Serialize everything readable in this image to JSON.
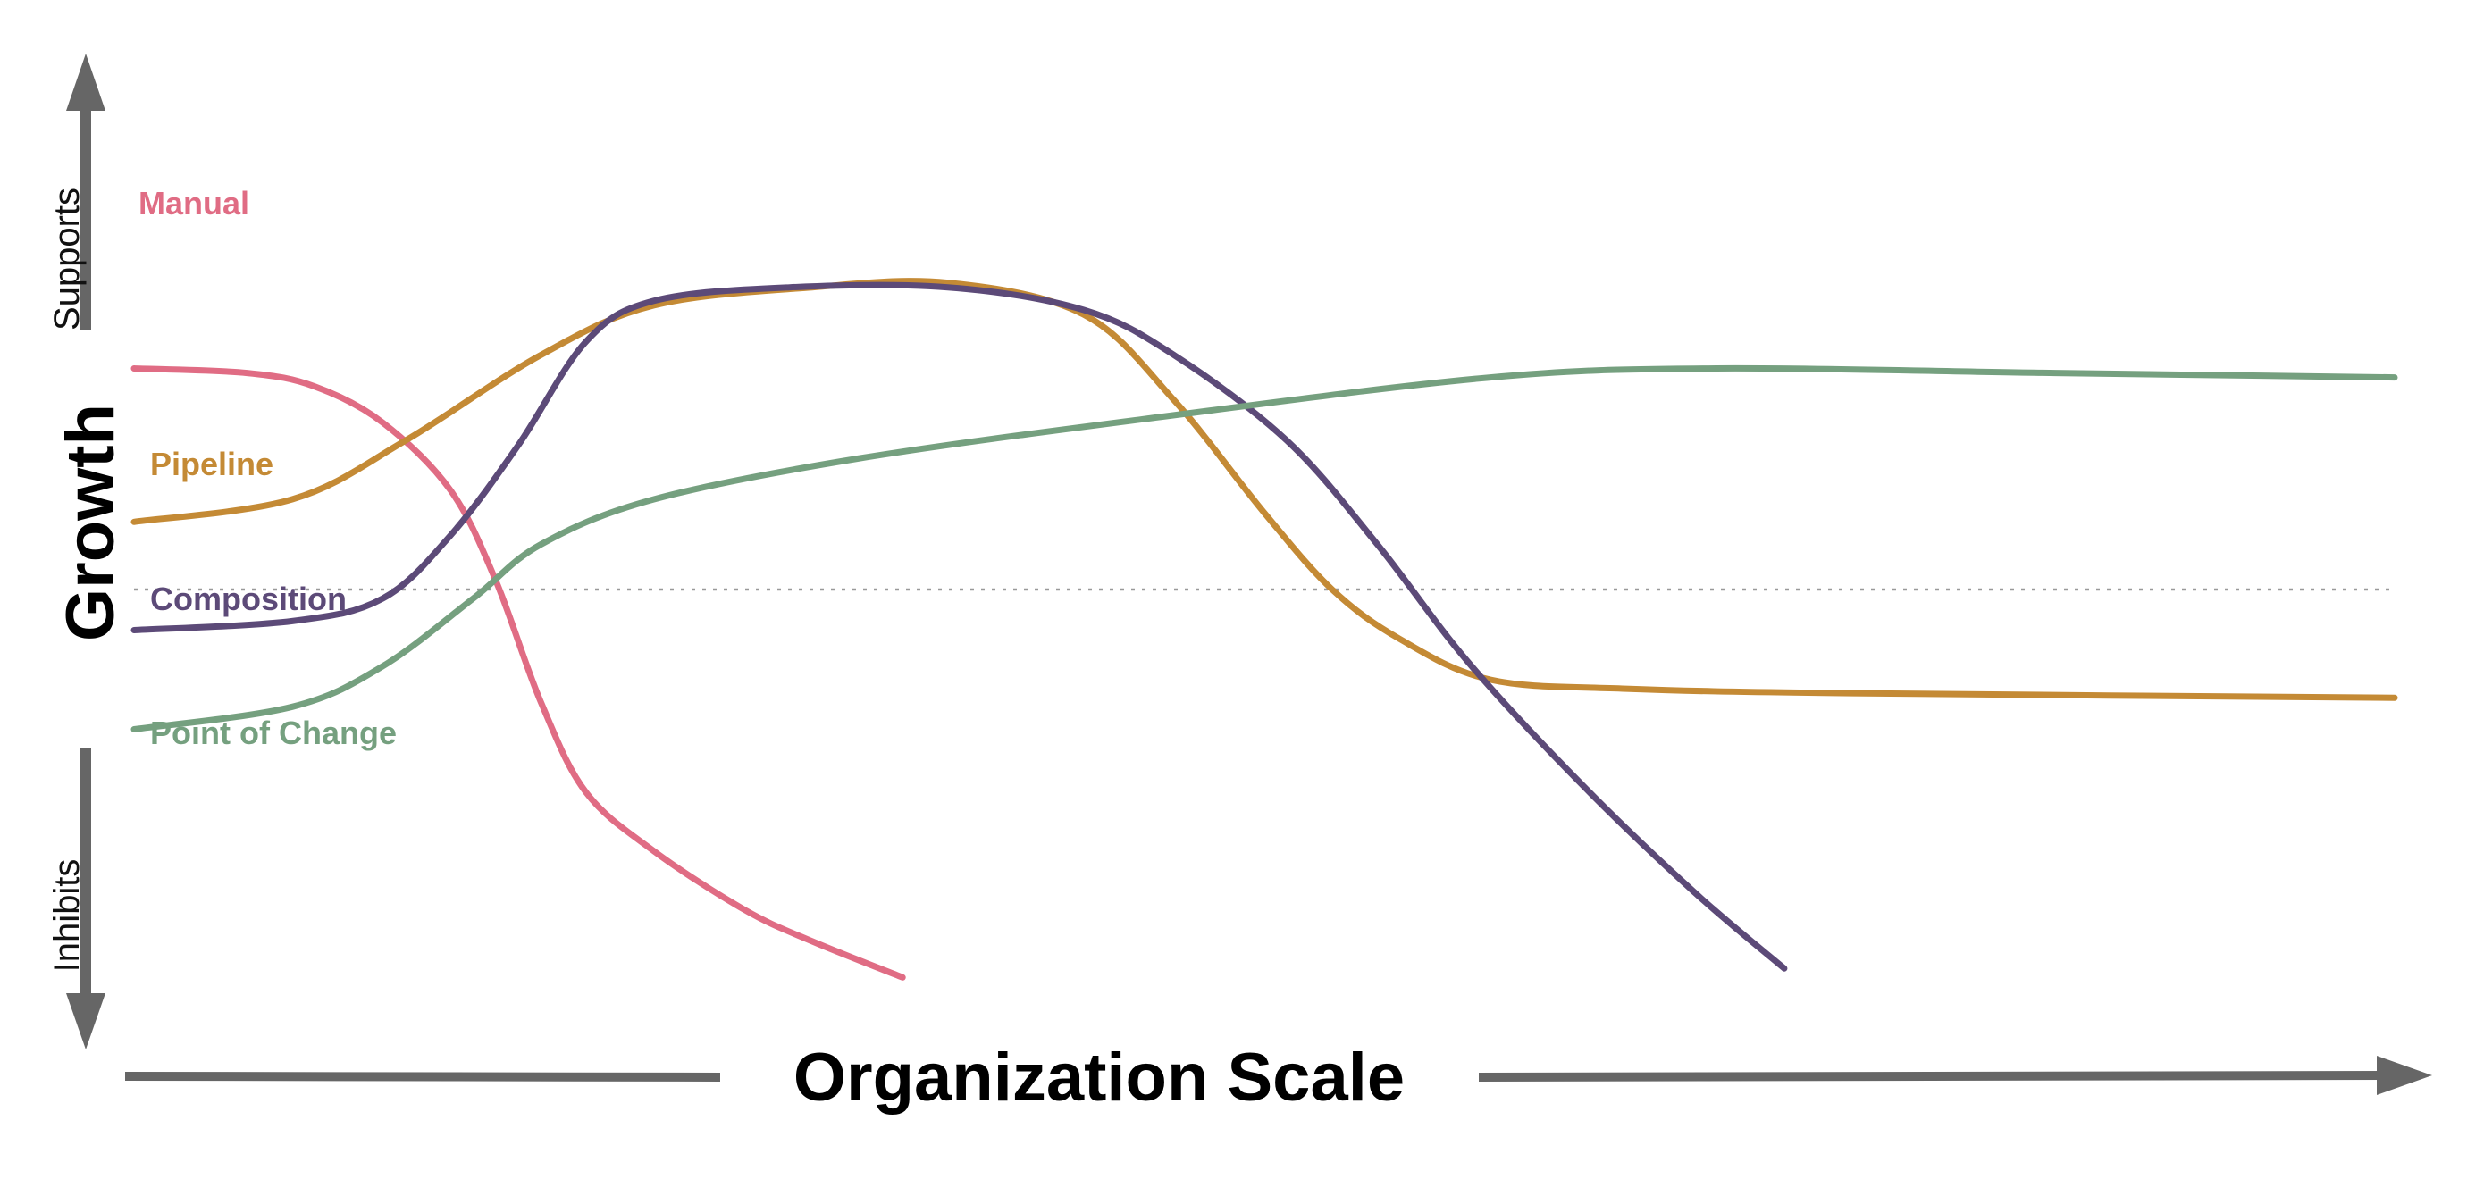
{
  "chart_data": {
    "type": "line",
    "title": "",
    "xlabel": "Organization Scale",
    "ylabel": "Growth",
    "y_top_label": "Supports",
    "y_bottom_label": "Inhibits",
    "axis_color": "#666666",
    "reference_line_color": "#999999",
    "xlim": [
      0,
      100
    ],
    "ylim": [
      -1,
      1
    ],
    "reference_line_y": 0,
    "series": [
      {
        "name": "Manual",
        "color": "#E06C84",
        "points": [
          [
            0,
            0.49
          ],
          [
            5,
            0.48
          ],
          [
            8,
            0.45
          ],
          [
            11,
            0.37
          ],
          [
            14,
            0.22
          ],
          [
            16,
            0.02
          ],
          [
            18,
            -0.25
          ],
          [
            20,
            -0.45
          ],
          [
            23,
            -0.58
          ],
          [
            27,
            -0.71
          ],
          [
            30,
            -0.78
          ],
          [
            34,
            -0.86
          ]
        ]
      },
      {
        "name": "Pipeline",
        "color": "#C48A35",
        "points": [
          [
            0,
            0.15
          ],
          [
            7,
            0.2
          ],
          [
            12,
            0.33
          ],
          [
            18,
            0.52
          ],
          [
            23,
            0.63
          ],
          [
            30,
            0.67
          ],
          [
            36,
            0.68
          ],
          [
            42,
            0.61
          ],
          [
            46,
            0.42
          ],
          [
            50,
            0.17
          ],
          [
            53,
            0.0
          ],
          [
            56,
            -0.11
          ],
          [
            60,
            -0.2
          ],
          [
            66,
            -0.22
          ],
          [
            76,
            -0.23
          ],
          [
            100,
            -0.24
          ]
        ]
      },
      {
        "name": "Composition",
        "color": "#5C4A78",
        "points": [
          [
            0,
            -0.09
          ],
          [
            7,
            -0.07
          ],
          [
            11,
            -0.02
          ],
          [
            14,
            0.12
          ],
          [
            17,
            0.32
          ],
          [
            20,
            0.55
          ],
          [
            23,
            0.64
          ],
          [
            29,
            0.67
          ],
          [
            36,
            0.67
          ],
          [
            42,
            0.62
          ],
          [
            46,
            0.52
          ],
          [
            51,
            0.33
          ],
          [
            55,
            0.1
          ],
          [
            59,
            -0.16
          ],
          [
            64,
            -0.43
          ],
          [
            69,
            -0.67
          ],
          [
            73,
            -0.84
          ]
        ]
      },
      {
        "name": "Point of Change",
        "color": "#75A07F",
        "points": [
          [
            0,
            -0.31
          ],
          [
            7,
            -0.26
          ],
          [
            11,
            -0.17
          ],
          [
            15,
            -0.02
          ],
          [
            18,
            0.1
          ],
          [
            23,
            0.2
          ],
          [
            32,
            0.29
          ],
          [
            45,
            0.38
          ],
          [
            60,
            0.47
          ],
          [
            70,
            0.49
          ],
          [
            85,
            0.48
          ],
          [
            100,
            0.47
          ]
        ]
      }
    ]
  }
}
